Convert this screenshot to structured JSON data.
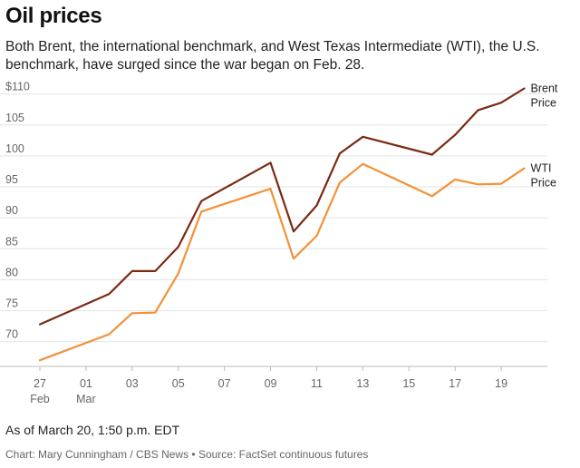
{
  "header": {
    "title": "Oil prices",
    "subtitle": "Both Brent, the international benchmark, and West Texas Intermediate (WTI), the U.S. benchmark, have surged since the war began on Feb. 28."
  },
  "footer": {
    "note": "As of March 20, 1:50 p.m. EDT",
    "credit": "Chart: Mary Cunningham / CBS News • Source: FactSet continuous futures"
  },
  "colors": {
    "brent": "#7a2a12",
    "wti": "#f39136",
    "grid": "#e3e3e3",
    "axis": "#bbbbbb"
  },
  "chart_data": {
    "type": "line",
    "title": "Oil prices",
    "xlabel": "",
    "ylabel": "",
    "x": [
      "2025-02-27",
      "2025-03-02",
      "2025-03-03",
      "2025-03-04",
      "2025-03-05",
      "2025-03-06",
      "2025-03-09",
      "2025-03-10",
      "2025-03-11",
      "2025-03-12",
      "2025-03-13",
      "2025-03-16",
      "2025-03-17",
      "2025-03-18",
      "2025-03-19",
      "2025-03-20"
    ],
    "series": [
      {
        "name": "Brent Price",
        "label_lines": [
          "Brent",
          "Price"
        ],
        "color": "#7a2a12",
        "values": [
          72.8,
          77.7,
          81.4,
          81.4,
          85.3,
          92.7,
          98.9,
          87.8,
          92.0,
          100.4,
          103.1,
          100.2,
          103.4,
          107.4,
          108.6,
          110.9
        ]
      },
      {
        "name": "WTI Price",
        "label_lines": [
          "WTI",
          "Price"
        ],
        "color": "#f39136",
        "values": [
          67.0,
          71.2,
          74.6,
          74.7,
          81.0,
          91.0,
          94.7,
          83.4,
          87.1,
          95.7,
          98.7,
          93.5,
          96.2,
          95.4,
          95.5,
          98.0
        ]
      }
    ],
    "ylim": [
      66,
      112
    ],
    "y_ticks": [
      {
        "value": 70,
        "label": "70"
      },
      {
        "value": 75,
        "label": "75"
      },
      {
        "value": 80,
        "label": "80"
      },
      {
        "value": 85,
        "label": "85"
      },
      {
        "value": 90,
        "label": "90"
      },
      {
        "value": 95,
        "label": "95"
      },
      {
        "value": 100,
        "label": "100"
      },
      {
        "value": 105,
        "label": "105"
      },
      {
        "value": 110,
        "label": "$110"
      }
    ],
    "x_ticks": [
      {
        "date": "2025-02-27",
        "label": "27",
        "sublabel": "Feb"
      },
      {
        "date": "2025-03-01",
        "label": "01",
        "sublabel": "Mar"
      },
      {
        "date": "2025-03-03",
        "label": "03",
        "sublabel": ""
      },
      {
        "date": "2025-03-05",
        "label": "05",
        "sublabel": ""
      },
      {
        "date": "2025-03-07",
        "label": "07",
        "sublabel": ""
      },
      {
        "date": "2025-03-09",
        "label": "09",
        "sublabel": ""
      },
      {
        "date": "2025-03-11",
        "label": "11",
        "sublabel": ""
      },
      {
        "date": "2025-03-13",
        "label": "13",
        "sublabel": ""
      },
      {
        "date": "2025-03-15",
        "label": "15",
        "sublabel": ""
      },
      {
        "date": "2025-03-17",
        "label": "17",
        "sublabel": ""
      },
      {
        "date": "2025-03-19",
        "label": "19",
        "sublabel": ""
      }
    ],
    "grid": true,
    "legend": "direct labels at line ends"
  }
}
